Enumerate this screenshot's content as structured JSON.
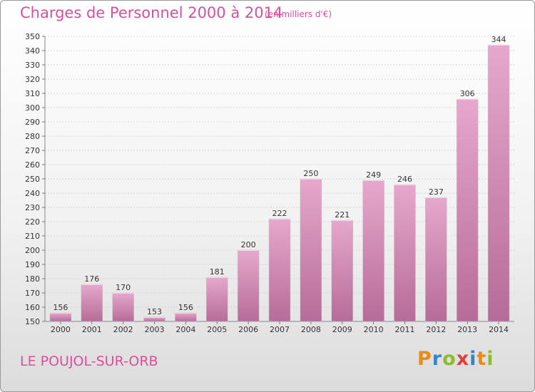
{
  "title": "Charges de Personnel 2000 à 2014",
  "subtitle": "(en milliers d'€)",
  "town": "LE POUJOL-SUR-ORB",
  "logo": {
    "text": "Proxiti",
    "letters": [
      {
        "ch": "P",
        "color": "#e98a1b"
      },
      {
        "ch": "r",
        "color": "#3b84c4"
      },
      {
        "ch": "o",
        "color": "#8bbd2e"
      },
      {
        "ch": "x",
        "color": "#e23e3e"
      },
      {
        "ch": "i",
        "color": "#3b84c4"
      },
      {
        "ch": "t",
        "color": "#e98a1b"
      },
      {
        "ch": "i",
        "color": "#8bbd2e"
      }
    ]
  },
  "chart_data": {
    "type": "bar",
    "categories": [
      "2000",
      "2001",
      "2002",
      "2003",
      "2004",
      "2005",
      "2006",
      "2007",
      "2008",
      "2009",
      "2010",
      "2011",
      "2012",
      "2013",
      "2014"
    ],
    "values": [
      156,
      176,
      170,
      153,
      156,
      181,
      200,
      222,
      250,
      221,
      249,
      246,
      237,
      306,
      344
    ],
    "ylim": [
      150,
      350
    ],
    "ytick_step": 10,
    "grid": true,
    "bar_color": "#d88bb6"
  }
}
